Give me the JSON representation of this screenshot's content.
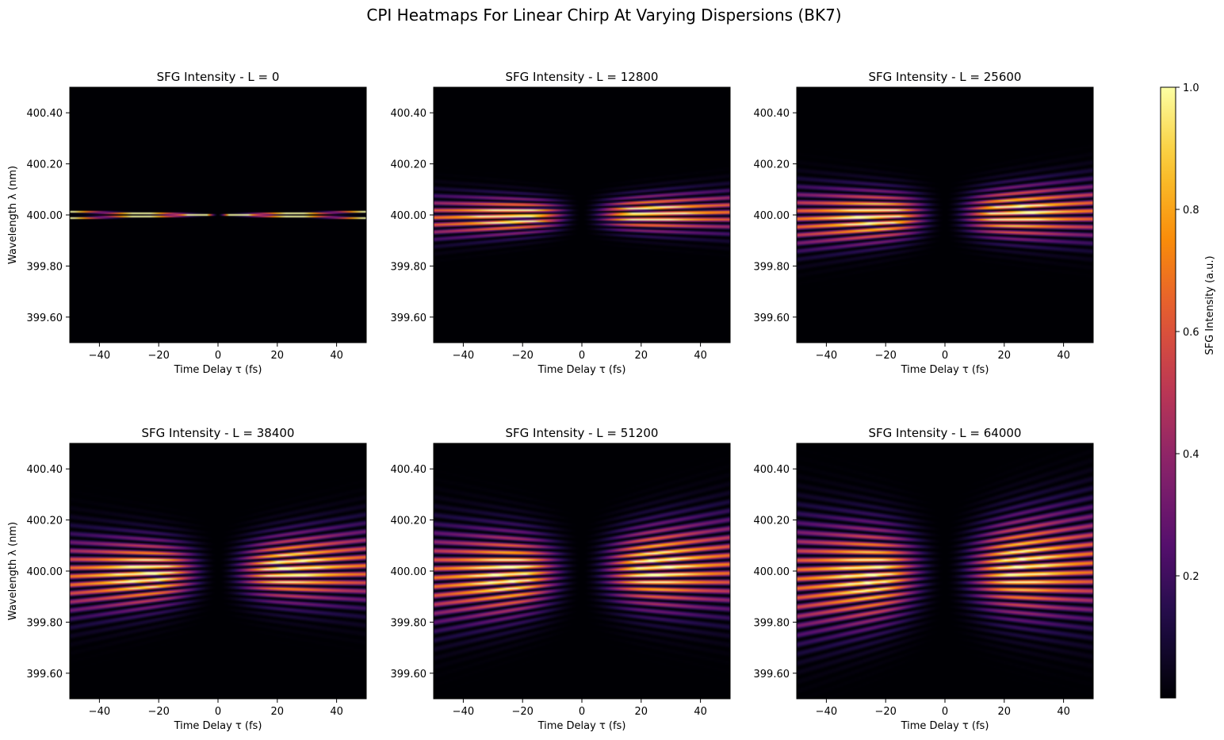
{
  "title": "CPI Heatmaps For Linear Chirp At Varying Dispersions (BK7)",
  "chart_data": {
    "type": "heatmap",
    "colormap": "inferno",
    "xlabel": "Time Delay τ (fs)",
    "ylabel": "Wavelength λ (nm)",
    "xlim": [
      -50,
      50
    ],
    "ylim": [
      399.5,
      400.5
    ],
    "xticks": [
      "−40",
      "−20",
      "0",
      "20",
      "40"
    ],
    "xtick_values": [
      -40,
      -20,
      0,
      20,
      40
    ],
    "yticks": [
      "400.40",
      "400.20",
      "400.00",
      "399.80",
      "399.60"
    ],
    "ytick_values": [
      400.4,
      400.2,
      400.0,
      399.8,
      399.6
    ],
    "center_wavelength": 400.0,
    "panels": [
      {
        "title": "SFG Intensity - L = 0",
        "L": 0,
        "spread_nm": 0.012,
        "fringe_spacing_nm": 0.012,
        "envelope_nm": 0.02
      },
      {
        "title": "SFG Intensity - L = 12800",
        "L": 12800,
        "spread_nm": 0.03,
        "fringe_spacing_nm": 0.018,
        "envelope_nm": 0.035
      },
      {
        "title": "SFG Intensity - L = 25600",
        "L": 25600,
        "spread_nm": 0.045,
        "fringe_spacing_nm": 0.02,
        "envelope_nm": 0.05
      },
      {
        "title": "SFG Intensity - L = 38400",
        "L": 38400,
        "spread_nm": 0.06,
        "fringe_spacing_nm": 0.021,
        "envelope_nm": 0.065
      },
      {
        "title": "SFG Intensity - L = 51200",
        "L": 51200,
        "spread_nm": 0.075,
        "fringe_spacing_nm": 0.022,
        "envelope_nm": 0.08
      },
      {
        "title": "SFG Intensity - L = 64000",
        "L": 64000,
        "spread_nm": 0.09,
        "fringe_spacing_nm": 0.023,
        "envelope_nm": 0.095
      }
    ],
    "colorbar": {
      "label": "SFG Intensity (a.u.)",
      "range": [
        0,
        1.0
      ],
      "ticks": [
        "0.2",
        "0.4",
        "0.6",
        "0.8",
        "1.0"
      ],
      "tick_values": [
        0.2,
        0.4,
        0.6,
        0.8,
        1.0
      ]
    }
  }
}
